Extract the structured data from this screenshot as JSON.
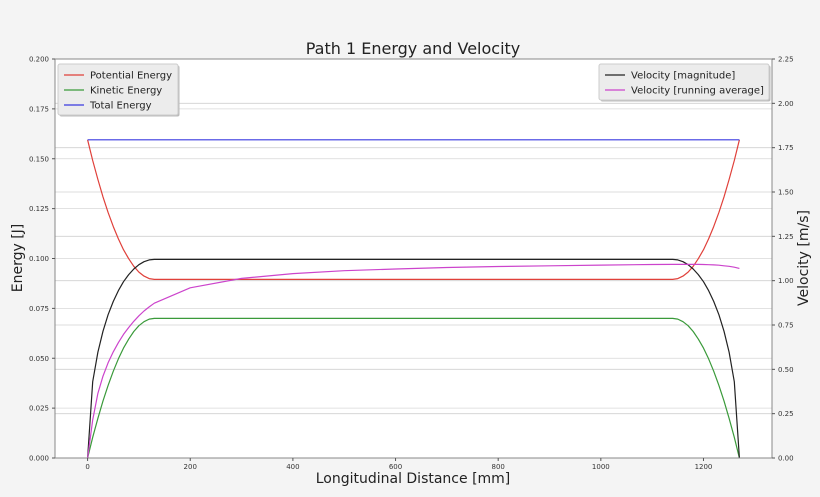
{
  "chart_data": {
    "type": "line",
    "title": "Path 1 Energy and Velocity",
    "xlabel": "Longitudinal Distance [mm]",
    "ylabel": "Energy [J]",
    "ylabel_right": "Velocity [m/s]",
    "xlim": [
      -63.5,
      1333.5
    ],
    "ylim": [
      0,
      0.2
    ],
    "ylim_right": [
      0,
      2.25
    ],
    "xticks": [
      "0",
      "200",
      "400",
      "600",
      "800",
      "1000",
      "1200"
    ],
    "yticks": [
      "0.000",
      "0.025",
      "0.050",
      "0.075",
      "0.100",
      "0.125",
      "0.150",
      "0.175",
      "0.200"
    ],
    "yticks_right": [
      "0.00",
      "0.25",
      "0.50",
      "0.75",
      "1.00",
      "1.25",
      "1.50",
      "1.75",
      "2.00",
      "2.25"
    ],
    "grid": true,
    "legend_left": "top-left",
    "legend_right": "top-right",
    "x": [
      0,
      10,
      20,
      30,
      40,
      50,
      60,
      70,
      80,
      90,
      100,
      110,
      120,
      130,
      200,
      300,
      400,
      500,
      600,
      700,
      800,
      900,
      1000,
      1100,
      1140,
      1150,
      1160,
      1170,
      1180,
      1190,
      1200,
      1210,
      1220,
      1230,
      1240,
      1250,
      1260,
      1270
    ],
    "series": [
      {
        "name": "Potential Energy",
        "axis": "left",
        "color": "#e0403a",
        "values": [
          0.1595,
          0.1491,
          0.1396,
          0.1309,
          0.1231,
          0.116,
          0.1098,
          0.1044,
          0.0999,
          0.0961,
          0.0932,
          0.0912,
          0.0899,
          0.0895,
          0.0895,
          0.0895,
          0.0895,
          0.0895,
          0.0895,
          0.0895,
          0.0895,
          0.0895,
          0.0895,
          0.0895,
          0.0895,
          0.0899,
          0.0912,
          0.0932,
          0.0961,
          0.0999,
          0.1044,
          0.1098,
          0.116,
          0.1231,
          0.1309,
          0.1396,
          0.1491,
          0.1595
        ]
      },
      {
        "name": "Kinetic Energy",
        "axis": "left",
        "color": "#3a9a3a",
        "values": [
          0,
          0.0104,
          0.0199,
          0.0286,
          0.0364,
          0.0435,
          0.0497,
          0.0551,
          0.0596,
          0.0634,
          0.0663,
          0.0683,
          0.0696,
          0.07,
          0.07,
          0.07,
          0.07,
          0.07,
          0.07,
          0.07,
          0.07,
          0.07,
          0.07,
          0.07,
          0.07,
          0.0696,
          0.0683,
          0.0663,
          0.0634,
          0.0596,
          0.0551,
          0.0497,
          0.0435,
          0.0364,
          0.0286,
          0.0199,
          0.0104,
          0
        ]
      },
      {
        "name": "Total Energy",
        "axis": "left",
        "color": "#3a3ae0",
        "x": [
          0,
          1270
        ],
        "values": [
          0.1595,
          0.1595
        ]
      },
      {
        "name": "Velocity [magnitude]",
        "axis": "right",
        "color": "#222222",
        "values": [
          0,
          0.43,
          0.597,
          0.715,
          0.808,
          0.883,
          0.944,
          0.994,
          1.034,
          1.066,
          1.09,
          1.107,
          1.117,
          1.12,
          1.12,
          1.12,
          1.12,
          1.12,
          1.12,
          1.12,
          1.12,
          1.12,
          1.12,
          1.12,
          1.12,
          1.117,
          1.107,
          1.09,
          1.066,
          1.034,
          0.994,
          0.944,
          0.883,
          0.808,
          0.715,
          0.597,
          0.43,
          0
        ]
      },
      {
        "name": "Velocity [running average]",
        "axis": "right",
        "color": "#cc44cc",
        "values": [
          0,
          0.215,
          0.365,
          0.462,
          0.537,
          0.599,
          0.651,
          0.697,
          0.736,
          0.771,
          0.802,
          0.829,
          0.852,
          0.873,
          0.96,
          1.013,
          1.04,
          1.056,
          1.066,
          1.074,
          1.08,
          1.084,
          1.088,
          1.091,
          1.092,
          1.092,
          1.092,
          1.092,
          1.092,
          1.092,
          1.091,
          1.09,
          1.089,
          1.087,
          1.084,
          1.081,
          1.076,
          1.069
        ]
      }
    ]
  }
}
